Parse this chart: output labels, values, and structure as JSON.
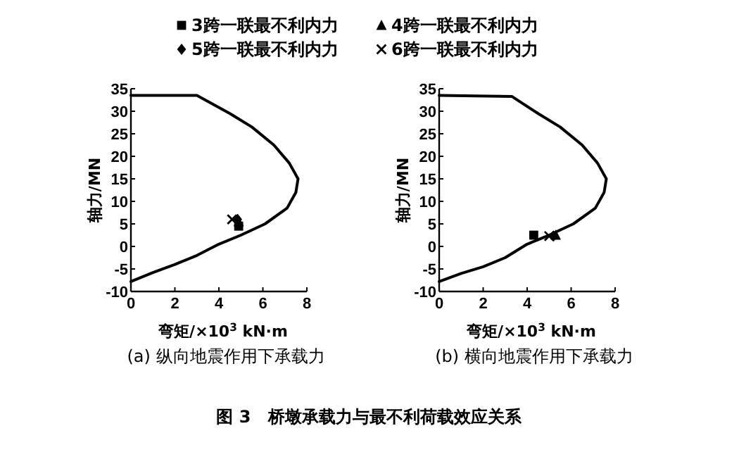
{
  "chart_data": [
    {
      "type": "scatter",
      "title": "(a) 纵向地震作用下承载力",
      "xlabel": "弯矩/×10$^{3}$ kN·m",
      "ylabel": "轴力/MN",
      "xlim": [
        0,
        8
      ],
      "ylim": [
        -10,
        35
      ],
      "xticks": [
        0,
        2,
        4,
        6,
        8
      ],
      "yticks": [
        -10,
        -5,
        0,
        5,
        10,
        15,
        20,
        25,
        30,
        35
      ],
      "grid": false,
      "legend": "top",
      "series": [
        {
          "type": "line",
          "color": "#000000",
          "marker": "none",
          "x": [
            0,
            3,
            4.5,
            5.5,
            6.5,
            7.2,
            7.6,
            7.5,
            7.1,
            6.1,
            5,
            4,
            3,
            2,
            1,
            0
          ],
          "values": [
            33.5,
            33.5,
            29.5,
            26.5,
            22.5,
            18.5,
            15,
            12,
            8.5,
            5,
            2.5,
            0.5,
            -2,
            -4,
            -5.8,
            -7.8
          ]
        },
        {
          "type": "scatter",
          "name": "3跨一联最不利内力",
          "marker": "square",
          "color": "#000000",
          "x": [
            4.9
          ],
          "values": [
            4.5
          ]
        },
        {
          "type": "scatter",
          "name": "4跨一联最不利内力",
          "marker": "triangle",
          "color": "#000000",
          "x": [
            4.9
          ],
          "values": [
            5.5
          ]
        },
        {
          "type": "scatter",
          "name": "5跨一联最不利内力",
          "marker": "diamond",
          "color": "#000000",
          "x": [
            4.85
          ],
          "values": [
            6
          ]
        },
        {
          "type": "scatter",
          "name": "6跨一联最不利内力",
          "marker": "cross",
          "color": "#000000",
          "x": [
            4.6
          ],
          "values": [
            6
          ]
        }
      ]
    },
    {
      "type": "scatter",
      "title": "(b) 横向地震作用下承载力",
      "xlabel": "弯矩/×10$^{3}$ kN·m",
      "ylabel": "轴力/MN",
      "xlim": [
        0,
        8
      ],
      "ylim": [
        -10,
        35
      ],
      "xticks": [
        0,
        2,
        4,
        6,
        8
      ],
      "yticks": [
        -10,
        -5,
        0,
        5,
        10,
        15,
        20,
        25,
        30,
        35
      ],
      "grid": false,
      "annotations": [
        "图 3　桥墩承载力与最不利荷载效应关系"
      ],
      "series": [
        {
          "type": "line",
          "color": "#000000",
          "marker": "none",
          "x": [
            0,
            3.3,
            4.5,
            5.5,
            6.5,
            7.2,
            7.6,
            7.5,
            7.1,
            6.1,
            5,
            4,
            3,
            2,
            1,
            0
          ],
          "values": [
            33.5,
            33.3,
            29.5,
            26.5,
            22.5,
            18.5,
            15,
            12,
            8.5,
            5,
            2.5,
            0.5,
            -2.5,
            -4.5,
            -6,
            -7.8
          ]
        },
        {
          "type": "scatter",
          "marker": "square",
          "color": "#000000",
          "x": [
            4.3
          ],
          "values": [
            2.5
          ]
        },
        {
          "type": "scatter",
          "marker": "triangle",
          "color": "#000000",
          "x": [
            5.3
          ],
          "values": [
            2.5
          ]
        },
        {
          "type": "scatter",
          "marker": "diamond",
          "color": "#000000",
          "x": [
            5.2
          ],
          "values": [
            2.3
          ]
        },
        {
          "type": "scatter",
          "marker": "cross",
          "color": "#000000",
          "x": [
            5.0
          ],
          "values": [
            2.3
          ]
        }
      ]
    }
  ]
}
